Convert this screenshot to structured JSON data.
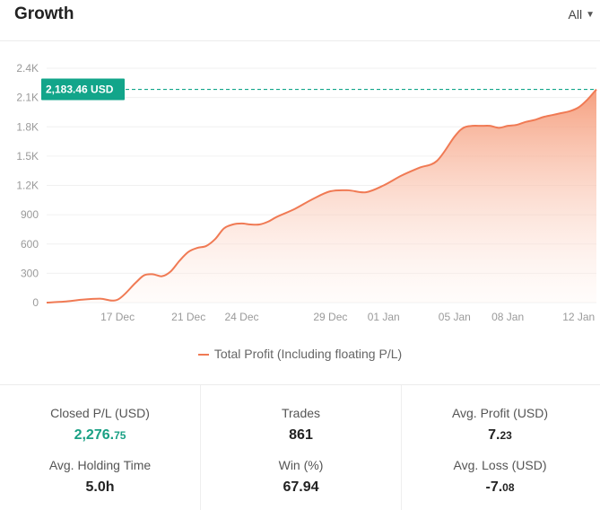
{
  "header": {
    "title": "Growth",
    "filter_label": "All"
  },
  "chart_data": {
    "type": "area",
    "y_ticks": [
      "2.4K",
      "2.1K",
      "1.8K",
      "1.5K",
      "1.2K",
      "900",
      "600",
      "300",
      "0"
    ],
    "ylim": [
      0,
      2400
    ],
    "x_ticks": [
      "17 Dec",
      "21 Dec",
      "24 Dec",
      "29 Dec",
      "01 Jan",
      "05 Jan",
      "08 Jan",
      "12 Jan"
    ],
    "x_tick_positions": [
      4,
      8,
      11,
      16,
      19,
      23,
      26,
      30
    ],
    "xlim": [
      0,
      31
    ],
    "series": [
      {
        "name": "Total Profit (Including floating P/L)",
        "x": [
          0,
          1,
          2,
          3,
          4,
          5,
          5.5,
          6,
          6.5,
          7,
          7.5,
          8,
          8.5,
          9,
          9.5,
          10,
          10.5,
          11,
          11.5,
          12,
          12.5,
          13,
          14,
          15,
          16,
          17,
          18,
          19,
          20,
          21,
          22,
          23,
          23.5,
          24,
          24.5,
          25,
          25.5,
          26,
          26.5,
          27,
          27.5,
          28,
          28.5,
          29,
          29.5,
          30,
          30.5,
          31
        ],
        "y": [
          0,
          10,
          30,
          40,
          30,
          200,
          280,
          290,
          270,
          320,
          430,
          520,
          560,
          580,
          650,
          760,
          800,
          810,
          800,
          800,
          830,
          880,
          960,
          1060,
          1140,
          1150,
          1130,
          1200,
          1300,
          1380,
          1450,
          1700,
          1790,
          1810,
          1810,
          1810,
          1790,
          1810,
          1820,
          1850,
          1870,
          1900,
          1920,
          1940,
          1960,
          2000,
          2080,
          2183.46
        ]
      }
    ],
    "current_value_label": "2,183.46 USD",
    "legend_position": "bottom-center",
    "grid": true
  },
  "colors": {
    "line": "#f07a54",
    "fill_top": "#f59a78",
    "badge": "#12a58a",
    "grid": "#f0f0f0",
    "axis_text": "#9a9a9a"
  },
  "stats": {
    "closed_pl": {
      "label": "Closed P/L (USD)",
      "int": "2,276.",
      "dec": "75"
    },
    "trades": {
      "label": "Trades",
      "value": "861"
    },
    "avg_profit": {
      "label": "Avg. Profit (USD)",
      "int": "7.",
      "dec": "23"
    },
    "avg_holding": {
      "label": "Avg. Holding Time",
      "value": "5.0h"
    },
    "win": {
      "label": "Win (%)",
      "value": "67.94"
    },
    "avg_loss": {
      "label": "Avg. Loss (USD)",
      "int": "-7.",
      "dec": "08"
    }
  }
}
